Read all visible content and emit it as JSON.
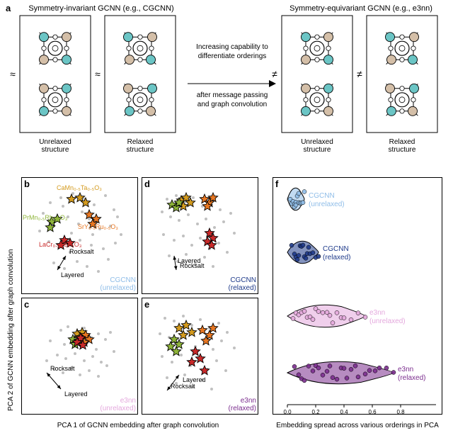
{
  "panel_a": {
    "label": "a",
    "left_title": "Symmetry-invariant GCNN (e.g., CGCNN)",
    "right_title": "Symmetry-equivariant GCNN (e.g., e3nn)",
    "arrow_text_1": "Increasing capability to",
    "arrow_text_2": "differentiate orderings",
    "arrow_text_3": "after message passing",
    "arrow_text_4": "and graph convolution",
    "caption_unrelaxed": "Unrelaxed\nstructure",
    "caption_relaxed": "Relaxed\nstructure",
    "approx_symbol": "≈",
    "neq_symbol": "≠",
    "atom_colors": {
      "teal": "#6bc5c5",
      "tan": "#d4bfa8",
      "white": "#ffffff"
    },
    "box_border": "#000000"
  },
  "axes": {
    "y_label": "PCA 2 of GCNN embedding after graph convolution",
    "x_label_left": "PCA 1 of GCNN embedding after graph convolution",
    "x_label_right": "Embedding spread across various orderings in PCA"
  },
  "compounds": [
    {
      "name": "CaMn₀.₅Ta₀.₅O₃",
      "color": "#d49b1f"
    },
    {
      "name": "PrMn₀.₅Rh₀.₅O₃",
      "color": "#8fb53a"
    },
    {
      "name": "SrY₀.₅Ru₀.₅O₃",
      "color": "#e87722"
    },
    {
      "name": "LaCr₀.₅Fe₀.₅O₃",
      "color": "#c92a2a"
    }
  ],
  "ordering_labels": {
    "rocksalt": "Rocksalt",
    "layered": "Layered"
  },
  "panels": {
    "b": {
      "label": "b",
      "model": "CGCNN",
      "variant": "(unrelaxed)",
      "color": "#8fbde8"
    },
    "c": {
      "label": "c",
      "model": "e3nn",
      "variant": "(unrelaxed)",
      "color": "#e4a8dd"
    },
    "d": {
      "label": "d",
      "model": "CGCNN",
      "variant": "(relaxed)",
      "color": "#1e3a8a"
    },
    "e": {
      "label": "e",
      "model": "e3nn",
      "variant": "(relaxed)",
      "color": "#7b2d8e"
    },
    "f": {
      "label": "f"
    }
  },
  "scatter": {
    "bg_point_color": "#4a4a4a",
    "bg_point_opacity": 0.35,
    "star_stroke": "#000000",
    "b": {
      "bg": [
        [
          40,
          35
        ],
        [
          55,
          28
        ],
        [
          72,
          22
        ],
        [
          88,
          30
        ],
        [
          102,
          38
        ],
        [
          118,
          25
        ],
        [
          130,
          45
        ],
        [
          48,
          60
        ],
        [
          65,
          55
        ],
        [
          80,
          65
        ],
        [
          95,
          58
        ],
        [
          110,
          72
        ],
        [
          125,
          68
        ],
        [
          38,
          90
        ],
        [
          52,
          98
        ],
        [
          68,
          105
        ],
        [
          82,
          88
        ],
        [
          98,
          95
        ],
        [
          115,
          100
        ],
        [
          132,
          92
        ],
        [
          45,
          120
        ],
        [
          60,
          128
        ],
        [
          78,
          118
        ],
        [
          92,
          125
        ],
        [
          108,
          132
        ],
        [
          122,
          115
        ],
        [
          30,
          50
        ],
        [
          140,
          80
        ],
        [
          25,
          75
        ],
        [
          135,
          55
        ],
        [
          58,
          40
        ],
        [
          85,
          48
        ],
        [
          100,
          80
        ],
        [
          70,
          78
        ]
      ],
      "stars": [
        {
          "x": 70,
          "y": 30,
          "c": "#d49b1f"
        },
        {
          "x": 82,
          "y": 28,
          "c": "#d49b1f"
        },
        {
          "x": 90,
          "y": 35,
          "c": "#d49b1f"
        },
        {
          "x": 42,
          "y": 62,
          "c": "#8fb53a"
        },
        {
          "x": 50,
          "y": 58,
          "c": "#8fb53a"
        },
        {
          "x": 40,
          "y": 70,
          "c": "#8fb53a"
        },
        {
          "x": 95,
          "y": 52,
          "c": "#e87722"
        },
        {
          "x": 105,
          "y": 58,
          "c": "#e87722"
        },
        {
          "x": 100,
          "y": 65,
          "c": "#e87722"
        },
        {
          "x": 60,
          "y": 88,
          "c": "#c92a2a"
        },
        {
          "x": 68,
          "y": 92,
          "c": "#c92a2a"
        },
        {
          "x": 55,
          "y": 95,
          "c": "#c92a2a"
        }
      ],
      "rocksalt_pos": [
        62,
        110
      ],
      "layered_pos": [
        50,
        130
      ]
    },
    "c": {
      "bg": [
        [
          55,
          45
        ],
        [
          65,
          40
        ],
        [
          78,
          48
        ],
        [
          88,
          42
        ],
        [
          98,
          55
        ],
        [
          108,
          50
        ],
        [
          118,
          58
        ],
        [
          60,
          65
        ],
        [
          72,
          62
        ],
        [
          85,
          68
        ],
        [
          95,
          60
        ],
        [
          105,
          72
        ],
        [
          50,
          80
        ],
        [
          62,
          85
        ],
        [
          75,
          78
        ],
        [
          88,
          88
        ],
        [
          100,
          82
        ],
        [
          112,
          90
        ],
        [
          45,
          100
        ],
        [
          58,
          105
        ],
        [
          70,
          98
        ],
        [
          82,
          108
        ],
        [
          95,
          102
        ],
        [
          108,
          110
        ],
        [
          120,
          95
        ],
        [
          40,
          60
        ],
        [
          130,
          75
        ],
        [
          35,
          88
        ],
        [
          125,
          48
        ]
      ],
      "stars": [
        {
          "x": 78,
          "y": 50,
          "c": "#d49b1f"
        },
        {
          "x": 85,
          "y": 48,
          "c": "#d49b1f"
        },
        {
          "x": 82,
          "y": 55,
          "c": "#d49b1f"
        },
        {
          "x": 72,
          "y": 58,
          "c": "#8fb53a"
        },
        {
          "x": 80,
          "y": 60,
          "c": "#8fb53a"
        },
        {
          "x": 75,
          "y": 65,
          "c": "#8fb53a"
        },
        {
          "x": 90,
          "y": 52,
          "c": "#e87722"
        },
        {
          "x": 95,
          "y": 58,
          "c": "#e87722"
        },
        {
          "x": 88,
          "y": 62,
          "c": "#e87722"
        },
        {
          "x": 83,
          "y": 56,
          "c": "#c92a2a"
        },
        {
          "x": 78,
          "y": 62,
          "c": "#c92a2a"
        },
        {
          "x": 86,
          "y": 66,
          "c": "#c92a2a"
        }
      ],
      "rocksalt_pos": [
        35,
        105
      ],
      "layered_pos": [
        55,
        128
      ]
    },
    "d": {
      "bg": [
        [
          35,
          30
        ],
        [
          48,
          25
        ],
        [
          60,
          35
        ],
        [
          72,
          28
        ],
        [
          85,
          40
        ],
        [
          98,
          32
        ],
        [
          110,
          45
        ],
        [
          40,
          55
        ],
        [
          52,
          60
        ],
        [
          65,
          52
        ],
        [
          78,
          65
        ],
        [
          90,
          58
        ],
        [
          102,
          70
        ],
        [
          115,
          62
        ],
        [
          30,
          80
        ],
        [
          45,
          88
        ],
        [
          58,
          82
        ],
        [
          70,
          95
        ],
        [
          82,
          85
        ],
        [
          95,
          100
        ],
        [
          108,
          92
        ],
        [
          120,
          105
        ],
        [
          38,
          110
        ],
        [
          50,
          118
        ],
        [
          62,
          108
        ],
        [
          75,
          122
        ],
        [
          88,
          112
        ],
        [
          100,
          125
        ],
        [
          28,
          48
        ],
        [
          130,
          78
        ],
        [
          125,
          50
        ]
      ],
      "stars": [
        {
          "x": 55,
          "y": 32,
          "c": "#d49b1f"
        },
        {
          "x": 62,
          "y": 28,
          "c": "#d49b1f"
        },
        {
          "x": 68,
          "y": 35,
          "c": "#d49b1f"
        },
        {
          "x": 58,
          "y": 40,
          "c": "#d49b1f"
        },
        {
          "x": 42,
          "y": 38,
          "c": "#8fb53a"
        },
        {
          "x": 48,
          "y": 42,
          "c": "#8fb53a"
        },
        {
          "x": 52,
          "y": 35,
          "c": "#8fb53a"
        },
        {
          "x": 88,
          "y": 30,
          "c": "#e87722"
        },
        {
          "x": 95,
          "y": 35,
          "c": "#e87722"
        },
        {
          "x": 100,
          "y": 28,
          "c": "#e87722"
        },
        {
          "x": 92,
          "y": 40,
          "c": "#e87722"
        },
        {
          "x": 95,
          "y": 78,
          "c": "#c92a2a"
        },
        {
          "x": 100,
          "y": 85,
          "c": "#c92a2a"
        },
        {
          "x": 92,
          "y": 90,
          "c": "#c92a2a"
        },
        {
          "x": 98,
          "y": 95,
          "c": "#c92a2a"
        }
      ],
      "rocksalt_pos": [
        48,
        130
      ],
      "layered_pos": [
        45,
        110
      ]
    },
    "e": {
      "bg": [
        [
          32,
          28
        ],
        [
          45,
          32
        ],
        [
          58,
          25
        ],
        [
          70,
          38
        ],
        [
          82,
          30
        ],
        [
          95,
          42
        ],
        [
          108,
          35
        ],
        [
          120,
          48
        ],
        [
          38,
          55
        ],
        [
          50,
          62
        ],
        [
          62,
          50
        ],
        [
          75,
          68
        ],
        [
          88,
          58
        ],
        [
          100,
          72
        ],
        [
          112,
          60
        ],
        [
          28,
          82
        ],
        [
          42,
          90
        ],
        [
          55,
          80
        ],
        [
          68,
          95
        ],
        [
          80,
          85
        ],
        [
          92,
          100
        ],
        [
          105,
          88
        ],
        [
          118,
          102
        ],
        [
          35,
          112
        ],
        [
          48,
          120
        ],
        [
          60,
          108
        ],
        [
          72,
          125
        ],
        [
          85,
          115
        ],
        [
          98,
          128
        ],
        [
          25,
          50
        ],
        [
          130,
          70
        ]
      ],
      "stars": [
        {
          "x": 52,
          "y": 42,
          "c": "#d49b1f"
        },
        {
          "x": 62,
          "y": 38,
          "c": "#d49b1f"
        },
        {
          "x": 70,
          "y": 48,
          "c": "#d49b1f"
        },
        {
          "x": 58,
          "y": 52,
          "c": "#d49b1f"
        },
        {
          "x": 45,
          "y": 58,
          "c": "#8fb53a"
        },
        {
          "x": 40,
          "y": 68,
          "c": "#8fb53a"
        },
        {
          "x": 52,
          "y": 65,
          "c": "#8fb53a"
        },
        {
          "x": 48,
          "y": 75,
          "c": "#8fb53a"
        },
        {
          "x": 85,
          "y": 45,
          "c": "#e87722"
        },
        {
          "x": 95,
          "y": 52,
          "c": "#e87722"
        },
        {
          "x": 100,
          "y": 42,
          "c": "#e87722"
        },
        {
          "x": 90,
          "y": 60,
          "c": "#e87722"
        },
        {
          "x": 75,
          "y": 75,
          "c": "#c92a2a"
        },
        {
          "x": 82,
          "y": 85,
          "c": "#c92a2a"
        },
        {
          "x": 88,
          "y": 102,
          "c": "#c92a2a"
        },
        {
          "x": 70,
          "y": 90,
          "c": "#c92a2a"
        }
      ],
      "rocksalt_pos": [
        35,
        130
      ],
      "layered_pos": [
        52,
        108
      ]
    }
  },
  "violins": {
    "xlim": [
      0,
      1
    ],
    "items": [
      {
        "label": "CGCNN",
        "sublabel": "(unrelaxed)",
        "color": "#8fbde8",
        "y": 30,
        "spread": 0.12,
        "points": [
          0.02,
          0.03,
          0.04,
          0.05,
          0.05,
          0.06,
          0.06,
          0.07,
          0.08,
          0.08,
          0.09,
          0.1,
          0.11,
          0.12
        ]
      },
      {
        "label": "CGCNN",
        "sublabel": "(relaxed)",
        "color": "#1e3a8a",
        "y": 105,
        "spread": 0.22,
        "points": [
          0.03,
          0.05,
          0.06,
          0.07,
          0.08,
          0.09,
          0.1,
          0.11,
          0.12,
          0.13,
          0.14,
          0.15,
          0.16,
          0.18,
          0.2,
          0.22
        ]
      },
      {
        "label": "e3nn",
        "sublabel": "(unrelaxed)",
        "color": "#e4a8dd",
        "y": 195,
        "spread": 0.55,
        "points": [
          0.04,
          0.06,
          0.08,
          0.1,
          0.12,
          0.14,
          0.16,
          0.18,
          0.2,
          0.22,
          0.25,
          0.28,
          0.3,
          0.32,
          0.35,
          0.38,
          0.4,
          0.45,
          0.5,
          0.55
        ]
      },
      {
        "label": "e3nn",
        "sublabel": "(relaxed)",
        "color": "#7b2d8e",
        "y": 275,
        "spread": 0.75,
        "points": [
          0.05,
          0.08,
          0.1,
          0.12,
          0.15,
          0.18,
          0.2,
          0.22,
          0.25,
          0.28,
          0.3,
          0.32,
          0.35,
          0.38,
          0.4,
          0.42,
          0.45,
          0.48,
          0.5,
          0.55,
          0.58,
          0.62,
          0.65,
          0.7,
          0.75
        ]
      }
    ]
  }
}
